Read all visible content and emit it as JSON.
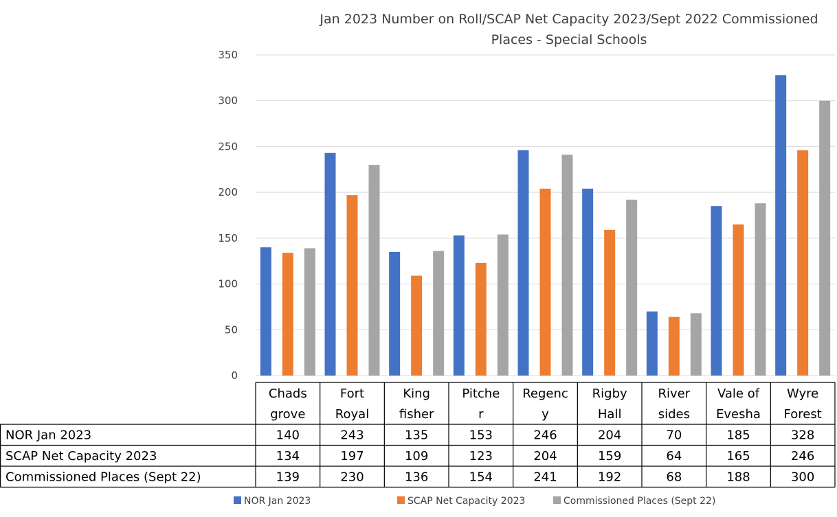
{
  "chart_data": {
    "type": "bar",
    "title_lines": [
      "Jan 2023 Number on Roll/SCAP Net Capacity 2023/Sept 2022 Commissioned",
      "Places - Special Schools"
    ],
    "category_label_lines": [
      [
        "Chads",
        "grove"
      ],
      [
        "Fort",
        "Royal"
      ],
      [
        "King",
        "fisher"
      ],
      [
        "Pitche",
        "r"
      ],
      [
        "Regenc",
        "y"
      ],
      [
        "Rigby",
        "Hall"
      ],
      [
        "River",
        "sides"
      ],
      [
        "Vale of",
        "Evesha"
      ],
      [
        "Wyre",
        "Forest"
      ]
    ],
    "series": [
      {
        "name": "NOR Jan 2023",
        "color": "#4472c4",
        "values": [
          140,
          243,
          135,
          153,
          246,
          204,
          70,
          185,
          328
        ]
      },
      {
        "name": "SCAP Net Capacity 2023",
        "color": "#ed7d31",
        "values": [
          134,
          197,
          109,
          123,
          204,
          159,
          64,
          165,
          246
        ]
      },
      {
        "name": "Commissioned Places (Sept 22)",
        "color": "#a5a5a5",
        "values": [
          139,
          230,
          136,
          154,
          241,
          192,
          68,
          188,
          300
        ]
      }
    ],
    "ylim": [
      0,
      350
    ],
    "yticks": [
      0,
      50,
      100,
      150,
      200,
      250,
      300,
      350
    ],
    "grid": true,
    "legend_position": "bottom",
    "data_table": true
  }
}
